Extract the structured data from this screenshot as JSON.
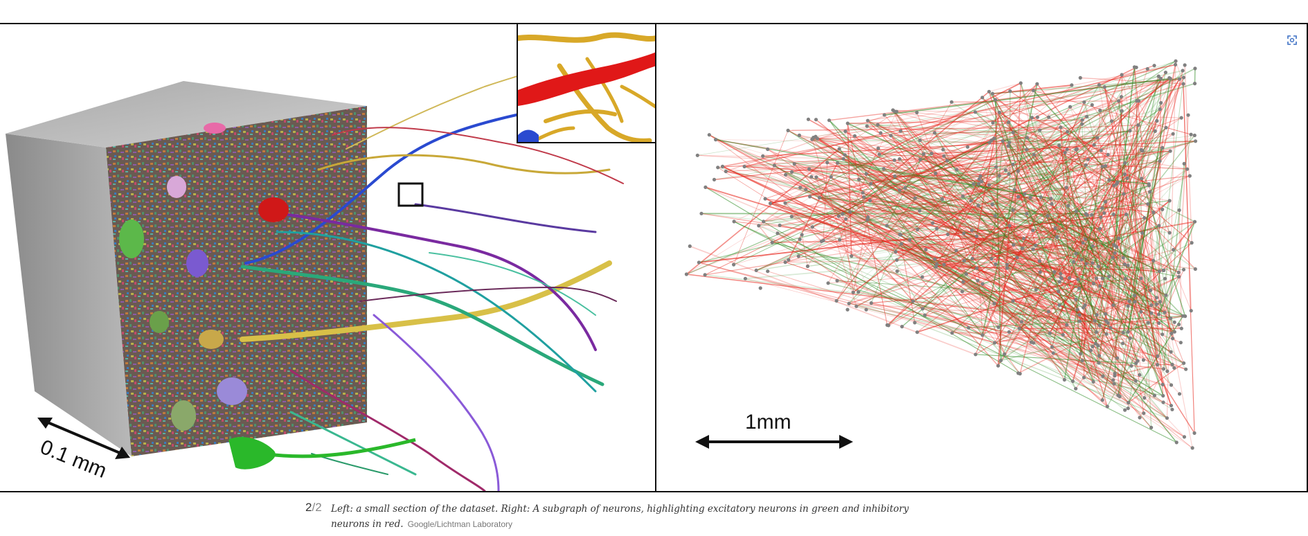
{
  "figure": {
    "left_scale_label": "0.1 mm",
    "right_scale_label": "1mm"
  },
  "caption": {
    "counter_current": "2",
    "counter_total": "/2",
    "text": "Left: a small section of the dataset. Right: A subgraph of neurons, highlighting excitatory neurons in green and inhibitory neurons in red.",
    "credit": "Google/Lichtman Laboratory"
  },
  "icons": {
    "expand": "expand-icon"
  },
  "colors": {
    "excitatory": "#2e8b22",
    "inhibitory": "#e8281e",
    "node": "#808080"
  }
}
